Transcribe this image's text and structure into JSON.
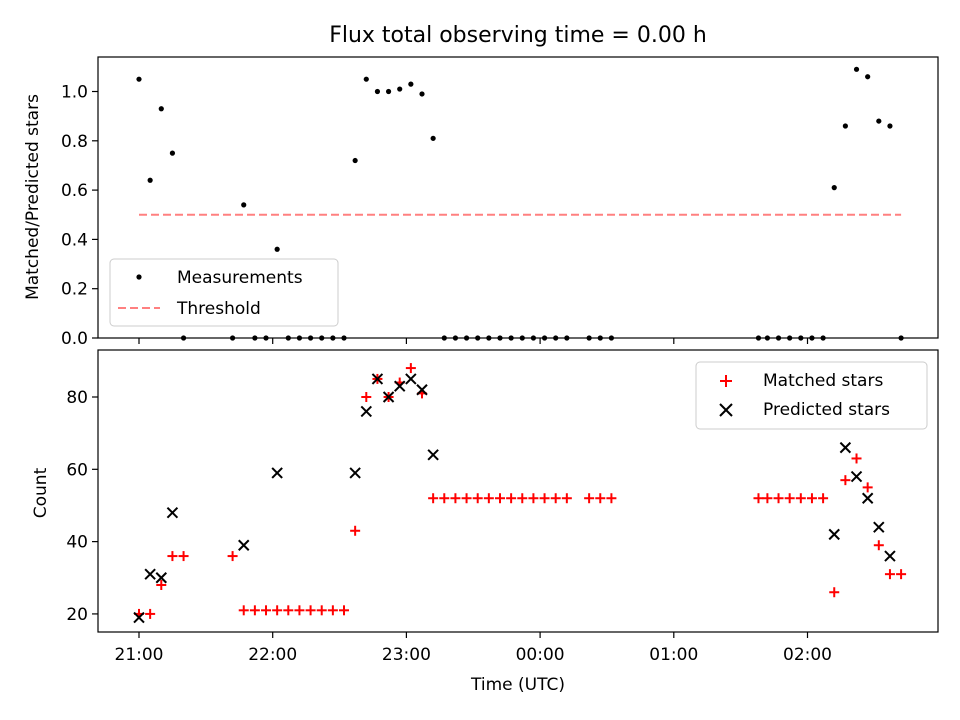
{
  "chart_data": [
    {
      "type": "scatter",
      "title": "Flux total observing time = 0.00 h",
      "xlabel": "",
      "ylabel": "Matched/Predicted stars",
      "ylim": [
        0,
        1.14
      ],
      "yticks": [
        0.0,
        0.2,
        0.4,
        0.6,
        0.8,
        1.0
      ],
      "ytick_labels": [
        "0.0",
        "0.2",
        "0.4",
        "0.6",
        "0.8",
        "1.0"
      ],
      "legend_placement": "lower-left",
      "series": [
        {
          "name": "Measurements",
          "kind": "points",
          "color": "#000000",
          "points": [
            [
              "21:00",
              1.05
            ],
            [
              "21:05",
              0.64
            ],
            [
              "21:10",
              0.93
            ],
            [
              "21:15",
              0.75
            ],
            [
              "21:20",
              0.0
            ],
            [
              "21:42",
              0.0
            ],
            [
              "21:47",
              0.54
            ],
            [
              "21:52",
              0.0
            ],
            [
              "21:57",
              0.0
            ],
            [
              "22:02",
              0.36
            ],
            [
              "22:07",
              0.0
            ],
            [
              "22:12",
              0.0
            ],
            [
              "22:17",
              0.0
            ],
            [
              "22:22",
              0.0
            ],
            [
              "22:27",
              0.0
            ],
            [
              "22:32",
              0.0
            ],
            [
              "22:37",
              0.72
            ],
            [
              "22:42",
              1.05
            ],
            [
              "22:47",
              1.0
            ],
            [
              "22:52",
              1.0
            ],
            [
              "22:57",
              1.01
            ],
            [
              "23:02",
              1.03
            ],
            [
              "23:07",
              0.99
            ],
            [
              "23:12",
              0.81
            ],
            [
              "23:17",
              0.0
            ],
            [
              "23:22",
              0.0
            ],
            [
              "23:27",
              0.0
            ],
            [
              "23:32",
              0.0
            ],
            [
              "23:37",
              0.0
            ],
            [
              "23:42",
              0.0
            ],
            [
              "23:47",
              0.0
            ],
            [
              "23:52",
              0.0
            ],
            [
              "23:57",
              0.0
            ],
            [
              "00:02",
              0.0
            ],
            [
              "00:07",
              0.0
            ],
            [
              "00:12",
              0.0
            ],
            [
              "00:22",
              0.0
            ],
            [
              "00:27",
              0.0
            ],
            [
              "00:32",
              0.0
            ],
            [
              "01:38",
              0.0
            ],
            [
              "01:42",
              0.0
            ],
            [
              "01:47",
              0.0
            ],
            [
              "01:52",
              0.0
            ],
            [
              "01:57",
              0.0
            ],
            [
              "02:02",
              0.0
            ],
            [
              "02:07",
              0.0
            ],
            [
              "02:12",
              0.61
            ],
            [
              "02:17",
              0.86
            ],
            [
              "02:22",
              1.09
            ],
            [
              "02:27",
              1.06
            ],
            [
              "02:32",
              0.88
            ],
            [
              "02:37",
              0.86
            ],
            [
              "02:42",
              0.0
            ]
          ]
        },
        {
          "name": "Threshold",
          "kind": "dashed-line",
          "color": "#ff8080",
          "x": [
            "21:00",
            "02:42"
          ],
          "values": [
            0.5,
            0.5
          ]
        }
      ]
    },
    {
      "type": "scatter",
      "title": "",
      "xlabel": "Time (UTC)",
      "ylabel": "Count",
      "ylim": [
        15,
        93
      ],
      "yticks": [
        20,
        40,
        60,
        80
      ],
      "ytick_labels": [
        "20",
        "40",
        "60",
        "80"
      ],
      "xtick_labels": [
        "21:00",
        "22:00",
        "23:00",
        "00:00",
        "01:00",
        "02:00"
      ],
      "legend_placement": "upper-right",
      "series": [
        {
          "name": "Matched stars",
          "marker": "plus",
          "color": "#ff0000",
          "points": [
            [
              "21:00",
              20
            ],
            [
              "21:05",
              20
            ],
            [
              "21:10",
              28
            ],
            [
              "21:15",
              36
            ],
            [
              "21:20",
              36
            ],
            [
              "21:42",
              36
            ],
            [
              "21:47",
              21
            ],
            [
              "21:52",
              21
            ],
            [
              "21:57",
              21
            ],
            [
              "22:02",
              21
            ],
            [
              "22:07",
              21
            ],
            [
              "22:12",
              21
            ],
            [
              "22:17",
              21
            ],
            [
              "22:22",
              21
            ],
            [
              "22:27",
              21
            ],
            [
              "22:32",
              21
            ],
            [
              "22:37",
              43
            ],
            [
              "22:42",
              80
            ],
            [
              "22:47",
              85
            ],
            [
              "22:52",
              80
            ],
            [
              "22:57",
              84
            ],
            [
              "23:02",
              88
            ],
            [
              "23:07",
              81
            ],
            [
              "23:12",
              52
            ],
            [
              "23:17",
              52
            ],
            [
              "23:22",
              52
            ],
            [
              "23:27",
              52
            ],
            [
              "23:32",
              52
            ],
            [
              "23:37",
              52
            ],
            [
              "23:42",
              52
            ],
            [
              "23:47",
              52
            ],
            [
              "23:52",
              52
            ],
            [
              "23:57",
              52
            ],
            [
              "00:02",
              52
            ],
            [
              "00:07",
              52
            ],
            [
              "00:12",
              52
            ],
            [
              "00:22",
              52
            ],
            [
              "00:27",
              52
            ],
            [
              "00:32",
              52
            ],
            [
              "01:38",
              52
            ],
            [
              "01:42",
              52
            ],
            [
              "01:47",
              52
            ],
            [
              "01:52",
              52
            ],
            [
              "01:57",
              52
            ],
            [
              "02:02",
              52
            ],
            [
              "02:07",
              52
            ],
            [
              "02:12",
              26
            ],
            [
              "02:17",
              57
            ],
            [
              "02:22",
              63
            ],
            [
              "02:27",
              55
            ],
            [
              "02:32",
              39
            ],
            [
              "02:37",
              31
            ],
            [
              "02:42",
              31
            ]
          ]
        },
        {
          "name": "Predicted stars",
          "marker": "x",
          "color": "#000000",
          "points": [
            [
              "21:00",
              19
            ],
            [
              "21:05",
              31
            ],
            [
              "21:10",
              30
            ],
            [
              "21:15",
              48
            ],
            [
              "21:47",
              39
            ],
            [
              "22:02",
              59
            ],
            [
              "22:37",
              59
            ],
            [
              "22:42",
              76
            ],
            [
              "22:47",
              85
            ],
            [
              "22:52",
              80
            ],
            [
              "22:57",
              83
            ],
            [
              "23:02",
              85
            ],
            [
              "23:07",
              82
            ],
            [
              "23:12",
              64
            ],
            [
              "02:12",
              42
            ],
            [
              "02:17",
              66
            ],
            [
              "02:22",
              58
            ],
            [
              "02:27",
              52
            ],
            [
              "02:32",
              44
            ],
            [
              "02:37",
              36
            ]
          ]
        }
      ]
    }
  ]
}
